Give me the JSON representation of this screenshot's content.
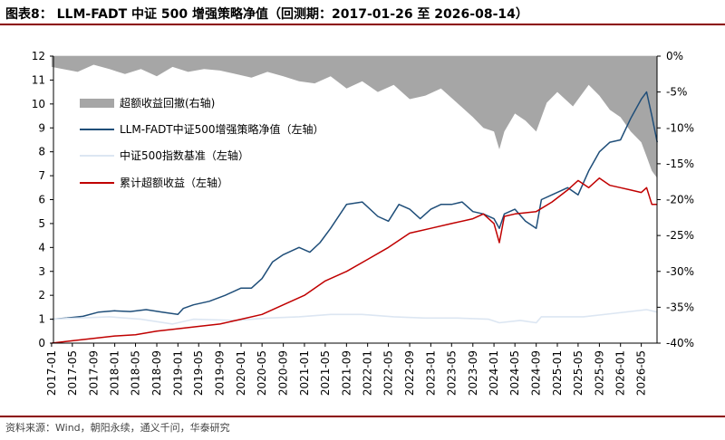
{
  "header": {
    "title": "图表8： LLM-FADT 中证 500 增强策略净值（回测期：2017-01-26 至 2026-08-14）"
  },
  "footer": {
    "source": "资料来源：Wind，朝阳永续，通义千问，华泰研究"
  },
  "chart_data": {
    "type": "line",
    "title": "LLM-FADT 中证 500 增强策略净值（回测期：2017-01-26 至 2026-08-14）",
    "left_axis": {
      "ylim": [
        0,
        12
      ],
      "ticks": [
        "0",
        "1",
        "2",
        "3",
        "4",
        "5",
        "6",
        "7",
        "8",
        "9",
        "10",
        "11",
        "12"
      ]
    },
    "right_axis": {
      "ylim": [
        -40,
        0
      ],
      "ticks": [
        "0%",
        "-5%",
        "-10%",
        "-15%",
        "-20%",
        "-25%",
        "-30%",
        "-35%",
        "-40%"
      ]
    },
    "x_ticks": [
      "2017-01",
      "2017-05",
      "2017-09",
      "2018-01",
      "2018-05",
      "2018-09",
      "2019-01",
      "2019-05",
      "2019-09",
      "2020-01",
      "2020-05",
      "2020-09",
      "2021-01",
      "2021-05",
      "2021-09",
      "2022-01",
      "2022-05",
      "2022-09",
      "2023-01",
      "2023-05",
      "2023-09",
      "2024-01",
      "2024-05",
      "2024-09",
      "2025-01",
      "2025-05",
      "2025-09",
      "2026-01",
      "2026-05"
    ],
    "x_range": [
      "2017-01-26",
      "2026-08-14"
    ],
    "legend_placement": "upper-left",
    "grid": false,
    "colors": {
      "drawdown": "#a6a6a6",
      "strategy": "#1f4e79",
      "benchmark": "#dce6f2",
      "excess": "#c00000"
    },
    "series": [
      {
        "name": "超额收益回撤(右轴)",
        "kind": "area",
        "axis": "right",
        "points": [
          [
            "2017-01",
            -1.5
          ],
          [
            "2017-06",
            -2.2
          ],
          [
            "2017-09",
            -1.2
          ],
          [
            "2017-12",
            -1.8
          ],
          [
            "2018-03",
            -2.5
          ],
          [
            "2018-06",
            -1.8
          ],
          [
            "2018-09",
            -2.8
          ],
          [
            "2018-12",
            -1.5
          ],
          [
            "2019-03",
            -2.2
          ],
          [
            "2019-06",
            -1.8
          ],
          [
            "2019-09",
            -2.0
          ],
          [
            "2019-12",
            -2.5
          ],
          [
            "2020-03",
            -3.0
          ],
          [
            "2020-06",
            -2.2
          ],
          [
            "2020-09",
            -2.8
          ],
          [
            "2020-12",
            -3.5
          ],
          [
            "2021-03",
            -3.8
          ],
          [
            "2021-06",
            -2.8
          ],
          [
            "2021-09",
            -4.5
          ],
          [
            "2021-12",
            -3.5
          ],
          [
            "2022-03",
            -5.0
          ],
          [
            "2022-06",
            -4.0
          ],
          [
            "2022-09",
            -6.0
          ],
          [
            "2022-12",
            -5.5
          ],
          [
            "2023-03",
            -4.5
          ],
          [
            "2023-06",
            -6.5
          ],
          [
            "2023-09",
            -8.5
          ],
          [
            "2023-11",
            -10.0
          ],
          [
            "2024-01",
            -10.5
          ],
          [
            "2024-02",
            -13.0
          ],
          [
            "2024-03",
            -10.5
          ],
          [
            "2024-05",
            -8.0
          ],
          [
            "2024-07",
            -9.0
          ],
          [
            "2024-09",
            -10.5
          ],
          [
            "2024-11",
            -6.5
          ],
          [
            "2025-01",
            -5.0
          ],
          [
            "2025-04",
            -7.0
          ],
          [
            "2025-07",
            -4.0
          ],
          [
            "2025-09",
            -5.5
          ],
          [
            "2025-11",
            -7.5
          ],
          [
            "2026-01",
            -8.5
          ],
          [
            "2026-03",
            -10.5
          ],
          [
            "2026-05",
            -12.0
          ],
          [
            "2026-06",
            -14.0
          ],
          [
            "2026-07",
            -16.0
          ],
          [
            "2026-08",
            -17.0
          ]
        ]
      },
      {
        "name": "LLM-FADT中证500增强策略净值（左轴）",
        "kind": "line",
        "axis": "left",
        "points": [
          [
            "2017-01",
            1.0
          ],
          [
            "2017-04",
            1.05
          ],
          [
            "2017-07",
            1.12
          ],
          [
            "2017-10",
            1.3
          ],
          [
            "2018-01",
            1.35
          ],
          [
            "2018-04",
            1.32
          ],
          [
            "2018-07",
            1.4
          ],
          [
            "2018-10",
            1.3
          ],
          [
            "2019-01",
            1.2
          ],
          [
            "2019-02",
            1.45
          ],
          [
            "2019-04",
            1.6
          ],
          [
            "2019-07",
            1.75
          ],
          [
            "2019-10",
            2.0
          ],
          [
            "2020-01",
            2.3
          ],
          [
            "2020-03",
            2.3
          ],
          [
            "2020-05",
            2.7
          ],
          [
            "2020-07",
            3.4
          ],
          [
            "2020-09",
            3.7
          ],
          [
            "2020-12",
            4.0
          ],
          [
            "2021-02",
            3.8
          ],
          [
            "2021-04",
            4.2
          ],
          [
            "2021-06",
            4.8
          ],
          [
            "2021-09",
            5.8
          ],
          [
            "2021-12",
            5.9
          ],
          [
            "2022-03",
            5.3
          ],
          [
            "2022-05",
            5.1
          ],
          [
            "2022-07",
            5.8
          ],
          [
            "2022-09",
            5.6
          ],
          [
            "2022-11",
            5.2
          ],
          [
            "2023-01",
            5.6
          ],
          [
            "2023-03",
            5.8
          ],
          [
            "2023-05",
            5.8
          ],
          [
            "2023-07",
            5.9
          ],
          [
            "2023-09",
            5.5
          ],
          [
            "2023-11",
            5.4
          ],
          [
            "2024-01",
            5.2
          ],
          [
            "2024-02",
            4.8
          ],
          [
            "2024-03",
            5.4
          ],
          [
            "2024-05",
            5.6
          ],
          [
            "2024-07",
            5.1
          ],
          [
            "2024-09",
            4.8
          ],
          [
            "2024-10",
            6.0
          ],
          [
            "2024-12",
            6.2
          ],
          [
            "2025-03",
            6.5
          ],
          [
            "2025-05",
            6.2
          ],
          [
            "2025-07",
            7.2
          ],
          [
            "2025-09",
            8.0
          ],
          [
            "2025-11",
            8.4
          ],
          [
            "2026-01",
            8.5
          ],
          [
            "2026-03",
            9.4
          ],
          [
            "2026-05",
            10.2
          ],
          [
            "2026-06",
            10.5
          ],
          [
            "2026-07",
            9.5
          ],
          [
            "2026-08",
            8.4
          ]
        ]
      },
      {
        "name": "中证500指数基准（左轴）",
        "kind": "line",
        "axis": "left",
        "points": [
          [
            "2017-01",
            1.0
          ],
          [
            "2017-06",
            1.05
          ],
          [
            "2017-12",
            1.1
          ],
          [
            "2018-06",
            1.0
          ],
          [
            "2018-12",
            0.8
          ],
          [
            "2019-04",
            1.0
          ],
          [
            "2019-12",
            0.95
          ],
          [
            "2020-06",
            1.05
          ],
          [
            "2020-12",
            1.1
          ],
          [
            "2021-06",
            1.2
          ],
          [
            "2021-12",
            1.2
          ],
          [
            "2022-06",
            1.1
          ],
          [
            "2022-12",
            1.05
          ],
          [
            "2023-06",
            1.05
          ],
          [
            "2023-12",
            1.0
          ],
          [
            "2024-02",
            0.85
          ],
          [
            "2024-06",
            0.95
          ],
          [
            "2024-09",
            0.85
          ],
          [
            "2024-10",
            1.1
          ],
          [
            "2025-06",
            1.1
          ],
          [
            "2025-12",
            1.25
          ],
          [
            "2026-06",
            1.4
          ],
          [
            "2026-08",
            1.3
          ]
        ]
      },
      {
        "name": "累计超额收益（左轴）",
        "kind": "line",
        "axis": "left",
        "points": [
          [
            "2017-01",
            0.0
          ],
          [
            "2017-05",
            0.1
          ],
          [
            "2017-09",
            0.2
          ],
          [
            "2018-01",
            0.3
          ],
          [
            "2018-05",
            0.35
          ],
          [
            "2018-09",
            0.5
          ],
          [
            "2019-01",
            0.6
          ],
          [
            "2019-05",
            0.7
          ],
          [
            "2019-09",
            0.8
          ],
          [
            "2020-01",
            1.0
          ],
          [
            "2020-05",
            1.2
          ],
          [
            "2020-09",
            1.6
          ],
          [
            "2021-01",
            2.0
          ],
          [
            "2021-05",
            2.6
          ],
          [
            "2021-09",
            3.0
          ],
          [
            "2022-01",
            3.5
          ],
          [
            "2022-05",
            4.0
          ],
          [
            "2022-09",
            4.6
          ],
          [
            "2023-01",
            4.8
          ],
          [
            "2023-05",
            5.0
          ],
          [
            "2023-09",
            5.2
          ],
          [
            "2023-11",
            5.4
          ],
          [
            "2024-01",
            5.0
          ],
          [
            "2024-02",
            4.2
          ],
          [
            "2024-03",
            5.3
          ],
          [
            "2024-05",
            5.4
          ],
          [
            "2024-09",
            5.5
          ],
          [
            "2024-12",
            5.9
          ],
          [
            "2025-03",
            6.4
          ],
          [
            "2025-05",
            6.8
          ],
          [
            "2025-07",
            6.5
          ],
          [
            "2025-09",
            6.9
          ],
          [
            "2025-11",
            6.6
          ],
          [
            "2026-01",
            6.5
          ],
          [
            "2026-03",
            6.4
          ],
          [
            "2026-05",
            6.3
          ],
          [
            "2026-06",
            6.5
          ],
          [
            "2026-07",
            5.8
          ],
          [
            "2026-08",
            5.8
          ]
        ]
      }
    ]
  }
}
